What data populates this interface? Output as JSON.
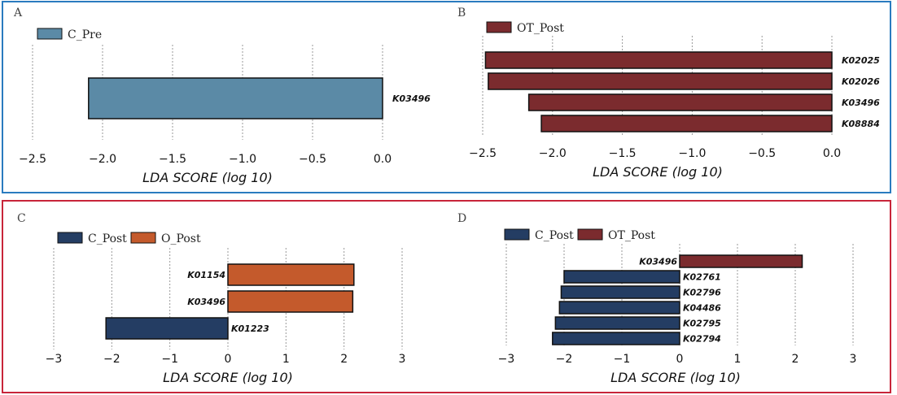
{
  "panels": [
    {
      "letter": "A",
      "chart_data": {
        "type": "bar",
        "orientation": "horizontal",
        "legend": [
          {
            "name": "C_Pre",
            "color": "#5b8aa6"
          }
        ],
        "categories": [
          "K03496"
        ],
        "values": [
          -2.1
        ],
        "bar_colors": [
          "#5b8aa6"
        ],
        "xlim": [
          -2.5,
          0.0
        ],
        "xticks": [
          -2.5,
          -2.0,
          -1.5,
          -1.0,
          -0.5,
          0.0
        ],
        "xtick_labels": [
          "−2.5",
          "−2.0",
          "−1.5",
          "−1.0",
          "−0.5",
          "0.0"
        ],
        "xlabel": "LDA SCORE (log 10)",
        "grid": true,
        "legend_position": "top-left",
        "label_side": "right"
      }
    },
    {
      "letter": "B",
      "chart_data": {
        "type": "bar",
        "orientation": "horizontal",
        "legend": [
          {
            "name": "OT_Post",
            "color": "#7b2b2e"
          }
        ],
        "categories": [
          "K02025",
          "K02026",
          "K03496",
          "K08884"
        ],
        "values": [
          -2.48,
          -2.46,
          -2.17,
          -2.08
        ],
        "bar_colors": [
          "#7b2b2e",
          "#7b2b2e",
          "#7b2b2e",
          "#7b2b2e"
        ],
        "xlim": [
          -2.5,
          0.0
        ],
        "xticks": [
          -2.5,
          -2.0,
          -1.5,
          -1.0,
          -0.5,
          0.0
        ],
        "xtick_labels": [
          "−2.5",
          "−2.0",
          "−1.5",
          "−1.0",
          "−0.5",
          "0.0"
        ],
        "xlabel": "LDA SCORE (log 10)",
        "grid": true,
        "legend_position": "top-left",
        "label_side": "right"
      }
    },
    {
      "letter": "C",
      "chart_data": {
        "type": "bar",
        "orientation": "horizontal",
        "legend": [
          {
            "name": "C_Post",
            "color": "#243d63"
          },
          {
            "name": "O_Post",
            "color": "#c45a2c"
          }
        ],
        "categories": [
          "K01154",
          "K03496",
          "K01223"
        ],
        "values": [
          2.17,
          2.15,
          -2.1
        ],
        "bar_colors": [
          "#c45a2c",
          "#c45a2c",
          "#243d63"
        ],
        "xlim": [
          -3,
          3
        ],
        "xticks": [
          -3,
          -2,
          -1,
          0,
          1,
          2,
          3
        ],
        "xtick_labels": [
          "−3",
          "−2",
          "−1",
          "0",
          "1",
          "2",
          "3"
        ],
        "xlabel": "LDA SCORE (log 10)",
        "grid": true,
        "legend_position": "top-left",
        "label_side": "opposite"
      }
    },
    {
      "letter": "D",
      "chart_data": {
        "type": "bar",
        "orientation": "horizontal",
        "legend": [
          {
            "name": "C_Post",
            "color": "#243d63"
          },
          {
            "name": "OT_Post",
            "color": "#7b2b2e"
          }
        ],
        "categories": [
          "K03496",
          "K02761",
          "K02796",
          "K04486",
          "K02795",
          "K02794"
        ],
        "values": [
          2.12,
          -2.0,
          -2.05,
          -2.08,
          -2.15,
          -2.2
        ],
        "bar_colors": [
          "#7b2b2e",
          "#243d63",
          "#243d63",
          "#243d63",
          "#243d63",
          "#243d63"
        ],
        "xlim": [
          -3,
          3
        ],
        "xticks": [
          -3,
          -2,
          -1,
          0,
          1,
          2,
          3
        ],
        "xtick_labels": [
          "−3",
          "−2",
          "−1",
          "0",
          "1",
          "2",
          "3"
        ],
        "xlabel": "LDA SCORE (log 10)",
        "grid": true,
        "legend_position": "top-left",
        "label_side": "opposite"
      }
    }
  ]
}
